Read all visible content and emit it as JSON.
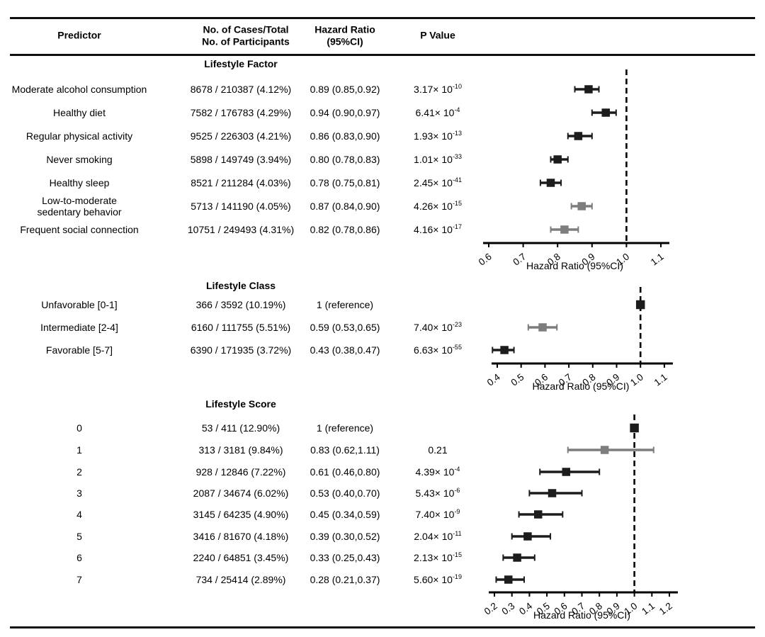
{
  "figure": {
    "columns": {
      "predictor": "Predictor",
      "cases": "No. of Cases/Total\nNo. of Participants",
      "hazard_ratio": "Hazard Ratio\n(95%CI)",
      "p_value": "P Value"
    },
    "colors": {
      "marker_black": "#1c1c1c",
      "marker_gray": "#7d7d7d",
      "axis": "#000000"
    }
  },
  "chart_data": [
    {
      "type": "scatter",
      "variant": "forest",
      "title": "Lifestyle Factor",
      "xlabel": "Hazard Ratio (95%CI)",
      "xlim": [
        0.6,
        1.1
      ],
      "ticks": [
        "0.6",
        "0.7",
        "0.8",
        "0.9",
        "1.0",
        "1.1"
      ],
      "ref_line": 1.0,
      "rows": [
        {
          "label": "Moderate alcohol consumption",
          "cases": "8678 / 210387 (4.12%)",
          "hr_text": "0.89 (0.85,0.92)",
          "hr": 0.89,
          "ci": [
            0.85,
            0.92
          ],
          "p_base": "3.17× 10",
          "p_exp": "-10",
          "color": "black",
          "reference": false
        },
        {
          "label": "Healthy diet",
          "cases": "7582 / 176783 (4.29%)",
          "hr_text": "0.94 (0.90,0.97)",
          "hr": 0.94,
          "ci": [
            0.9,
            0.97
          ],
          "p_base": "6.41× 10",
          "p_exp": "-4",
          "color": "black",
          "reference": false
        },
        {
          "label": "Regular physical activity",
          "cases": "9525 / 226303 (4.21%)",
          "hr_text": "0.86 (0.83,0.90)",
          "hr": 0.86,
          "ci": [
            0.83,
            0.9
          ],
          "p_base": "1.93× 10",
          "p_exp": "-13",
          "color": "black",
          "reference": false
        },
        {
          "label": "Never smoking",
          "cases": "5898 / 149749 (3.94%)",
          "hr_text": "0.80 (0.78,0.83)",
          "hr": 0.8,
          "ci": [
            0.78,
            0.83
          ],
          "p_base": "1.01× 10",
          "p_exp": "-33",
          "color": "black",
          "reference": false
        },
        {
          "label": "Healthy sleep",
          "cases": "8521 / 211284 (4.03%)",
          "hr_text": "0.78 (0.75,0.81)",
          "hr": 0.78,
          "ci": [
            0.75,
            0.81
          ],
          "p_base": "2.45× 10",
          "p_exp": "-41",
          "color": "black",
          "reference": false
        },
        {
          "label": "Low-to-moderate\nsedentary behavior",
          "cases": "5713 / 141190 (4.05%)",
          "hr_text": "0.87 (0.84,0.90)",
          "hr": 0.87,
          "ci": [
            0.84,
            0.9
          ],
          "p_base": "4.26× 10",
          "p_exp": "-15",
          "color": "gray",
          "reference": false
        },
        {
          "label": "Frequent social connection",
          "cases": "10751 / 249493 (4.31%)",
          "hr_text": "0.82 (0.78,0.86)",
          "hr": 0.82,
          "ci": [
            0.78,
            0.86
          ],
          "p_base": "4.16× 10",
          "p_exp": "-17",
          "color": "gray",
          "reference": false
        }
      ]
    },
    {
      "type": "scatter",
      "variant": "forest",
      "title": "Lifestyle Class",
      "xlabel": "Hazard Ratio (95%CI)",
      "xlim": [
        0.4,
        1.1
      ],
      "ticks": [
        "0.4",
        "0.5",
        "0.6",
        "0.7",
        "0.8",
        "0.9",
        "1.0",
        "1.1"
      ],
      "ref_line": 1.0,
      "rows": [
        {
          "label": "Unfavorable [0-1]",
          "cases": "366 / 3592 (10.19%)",
          "hr_text": "1 (reference)",
          "hr": 1.0,
          "ci": null,
          "p_base": null,
          "p_exp": null,
          "color": "black",
          "reference": true
        },
        {
          "label": "Intermediate [2-4]",
          "cases": "6160 / 111755 (5.51%)",
          "hr_text": "0.59 (0.53,0.65)",
          "hr": 0.59,
          "ci": [
            0.53,
            0.65
          ],
          "p_base": "7.40× 10",
          "p_exp": "-23",
          "color": "gray",
          "reference": false
        },
        {
          "label": "Favorable [5-7]",
          "cases": "6390 / 171935 (3.72%)",
          "hr_text": "0.43 (0.38,0.47)",
          "hr": 0.43,
          "ci": [
            0.38,
            0.47
          ],
          "p_base": "6.63× 10",
          "p_exp": "-55",
          "color": "black",
          "reference": false
        }
      ]
    },
    {
      "type": "scatter",
      "variant": "forest",
      "title": "Lifestyle Score",
      "xlabel": "Hazard Ratio (95%CI)",
      "xlim": [
        0.2,
        1.2
      ],
      "ticks": [
        "0.2",
        "0.3",
        "0.4",
        "0.5",
        "0.6",
        "0.7",
        "0.8",
        "0.9",
        "1.0",
        "1.1",
        "1.2"
      ],
      "ref_line": 1.0,
      "rows": [
        {
          "label": "0",
          "cases": "53 / 411 (12.90%)",
          "hr_text": "1 (reference)",
          "hr": 1.0,
          "ci": null,
          "p_base": null,
          "p_exp": null,
          "color": "black",
          "reference": true
        },
        {
          "label": "1",
          "cases": "313 / 3181 (9.84%)",
          "hr_text": "0.83 (0.62,1.11)",
          "hr": 0.83,
          "ci": [
            0.62,
            1.11
          ],
          "p_base": "0.21",
          "p_exp": null,
          "color": "gray",
          "reference": false
        },
        {
          "label": "2",
          "cases": "928 / 12846 (7.22%)",
          "hr_text": "0.61 (0.46,0.80)",
          "hr": 0.61,
          "ci": [
            0.46,
            0.8
          ],
          "p_base": "4.39× 10",
          "p_exp": "-4",
          "color": "black",
          "reference": false
        },
        {
          "label": "3",
          "cases": "2087 / 34674 (6.02%)",
          "hr_text": "0.53 (0.40,0.70)",
          "hr": 0.53,
          "ci": [
            0.4,
            0.7
          ],
          "p_base": "5.43× 10",
          "p_exp": "-6",
          "color": "black",
          "reference": false
        },
        {
          "label": "4",
          "cases": "3145 / 64235 (4.90%)",
          "hr_text": "0.45 (0.34,0.59)",
          "hr": 0.45,
          "ci": [
            0.34,
            0.59
          ],
          "p_base": "7.40× 10",
          "p_exp": "-9",
          "color": "black",
          "reference": false
        },
        {
          "label": "5",
          "cases": "3416 / 81670 (4.18%)",
          "hr_text": "0.39 (0.30,0.52)",
          "hr": 0.39,
          "ci": [
            0.3,
            0.52
          ],
          "p_base": "2.04× 10",
          "p_exp": "-11",
          "color": "black",
          "reference": false
        },
        {
          "label": "6",
          "cases": "2240 / 64851 (3.45%)",
          "hr_text": "0.33 (0.25,0.43)",
          "hr": 0.33,
          "ci": [
            0.25,
            0.43
          ],
          "p_base": "2.13× 10",
          "p_exp": "-15",
          "color": "black",
          "reference": false
        },
        {
          "label": "7",
          "cases": "734 / 25414 (2.89%)",
          "hr_text": "0.28 (0.21,0.37)",
          "hr": 0.28,
          "ci": [
            0.21,
            0.37
          ],
          "p_base": "5.60× 10",
          "p_exp": "-19",
          "color": "black",
          "reference": false
        }
      ]
    }
  ]
}
